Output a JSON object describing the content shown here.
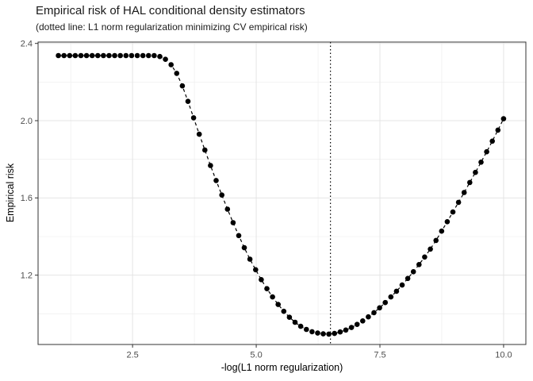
{
  "colors": {
    "background": "#ffffff",
    "panel_background": "#ffffff",
    "panel_border": "#333333",
    "grid_major": "#e4e4e4",
    "grid_minor": "#f0f0f0",
    "tick_mark": "#333333",
    "tick_label": "#4d4d4d",
    "point": "#000000",
    "line": "#000000",
    "vline": "#000000",
    "text": "#1a1a1a"
  },
  "chart_data": {
    "type": "scatter",
    "title": "Empirical risk of HAL conditional density estimators",
    "subtitle": "(dotted line: L1 norm regularization minimizing CV empirical risk)",
    "xlabel": "-log(L1 norm regularization)",
    "ylabel": "Empirical risk",
    "xlim": [
      0.59,
      10.45
    ],
    "ylim": [
      0.841,
      2.407
    ],
    "x_major_ticks": [
      2.5,
      5.0,
      7.5,
      10.0
    ],
    "x_tick_labels": [
      "2.5",
      "5.0",
      "7.5",
      "10.0"
    ],
    "x_minor_ticks": [
      1.25,
      3.75,
      6.25,
      8.75
    ],
    "y_major_ticks": [
      1.2,
      1.6,
      2.0,
      2.4
    ],
    "y_tick_labels": [
      "1.2",
      "1.6",
      "2.0",
      "2.4"
    ],
    "y_minor_ticks": [
      1.0,
      1.4,
      1.8,
      2.2
    ],
    "grid": true,
    "legend": "none",
    "line_style": "dashed",
    "vline_style": "dotted",
    "vline_x": 6.5,
    "point_radius": 3.3,
    "points": [
      [
        1.0,
        2.337
      ],
      [
        1.114,
        2.337
      ],
      [
        1.228,
        2.337
      ],
      [
        1.342,
        2.337
      ],
      [
        1.456,
        2.337
      ],
      [
        1.57,
        2.337
      ],
      [
        1.684,
        2.337
      ],
      [
        1.797,
        2.337
      ],
      [
        1.911,
        2.337
      ],
      [
        2.025,
        2.337
      ],
      [
        2.139,
        2.337
      ],
      [
        2.253,
        2.337
      ],
      [
        2.367,
        2.337
      ],
      [
        2.481,
        2.337
      ],
      [
        2.595,
        2.337
      ],
      [
        2.709,
        2.337
      ],
      [
        2.823,
        2.337
      ],
      [
        2.937,
        2.337
      ],
      [
        3.051,
        2.332
      ],
      [
        3.165,
        2.318
      ],
      [
        3.278,
        2.29
      ],
      [
        3.392,
        2.245
      ],
      [
        3.506,
        2.18
      ],
      [
        3.62,
        2.1
      ],
      [
        3.734,
        2.015
      ],
      [
        3.848,
        1.93
      ],
      [
        3.962,
        1.848
      ],
      [
        4.076,
        1.768
      ],
      [
        4.19,
        1.69
      ],
      [
        4.304,
        1.615
      ],
      [
        4.418,
        1.542
      ],
      [
        4.532,
        1.472
      ],
      [
        4.646,
        1.405
      ],
      [
        4.759,
        1.342
      ],
      [
        4.873,
        1.283
      ],
      [
        4.987,
        1.228
      ],
      [
        5.101,
        1.177
      ],
      [
        5.215,
        1.13
      ],
      [
        5.329,
        1.087
      ],
      [
        5.443,
        1.048
      ],
      [
        5.557,
        1.013
      ],
      [
        5.671,
        0.982
      ],
      [
        5.785,
        0.956
      ],
      [
        5.899,
        0.935
      ],
      [
        6.013,
        0.919
      ],
      [
        6.127,
        0.907
      ],
      [
        6.241,
        0.9
      ],
      [
        6.354,
        0.896
      ],
      [
        6.468,
        0.895
      ],
      [
        6.582,
        0.898
      ],
      [
        6.696,
        0.906
      ],
      [
        6.81,
        0.916
      ],
      [
        6.924,
        0.929
      ],
      [
        7.038,
        0.945
      ],
      [
        7.152,
        0.963
      ],
      [
        7.266,
        0.984
      ],
      [
        7.38,
        1.006
      ],
      [
        7.494,
        1.031
      ],
      [
        7.608,
        1.058
      ],
      [
        7.722,
        1.087
      ],
      [
        7.835,
        1.117
      ],
      [
        7.949,
        1.149
      ],
      [
        8.063,
        1.183
      ],
      [
        8.177,
        1.218
      ],
      [
        8.291,
        1.255
      ],
      [
        8.405,
        1.294
      ],
      [
        8.519,
        1.335
      ],
      [
        8.633,
        1.38
      ],
      [
        8.747,
        1.428
      ],
      [
        8.861,
        1.477
      ],
      [
        8.975,
        1.527
      ],
      [
        9.089,
        1.577
      ],
      [
        9.203,
        1.628
      ],
      [
        9.316,
        1.68
      ],
      [
        9.43,
        1.732
      ],
      [
        9.544,
        1.785
      ],
      [
        9.658,
        1.839
      ],
      [
        9.772,
        1.894
      ],
      [
        9.886,
        1.951
      ],
      [
        10.0,
        2.01
      ]
    ]
  }
}
